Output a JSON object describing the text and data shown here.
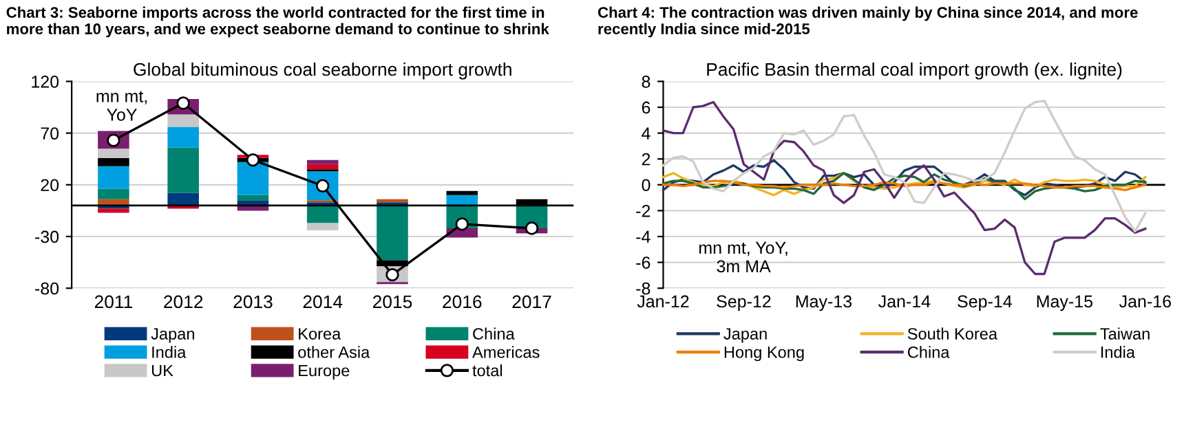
{
  "chart_data": [
    {
      "type": "bar",
      "title": "Chart 3: Seaborne imports across the world contracted for the first time in more than 10 years, and we expect seaborne demand to continue to shrink",
      "subtitle": "Global bituminous coal seaborne import growth",
      "stacked": true,
      "categories": [
        "2011",
        "2012",
        "2013",
        "2014",
        "2015",
        "2016",
        "2017"
      ],
      "series": [
        {
          "name": "Japan",
          "color": "#003a7d",
          "values": [
            -3,
            12,
            5,
            3,
            3,
            0,
            0
          ]
        },
        {
          "name": "Korea",
          "color": "#c0511a",
          "values": [
            6,
            0,
            0,
            2,
            3,
            0,
            0
          ]
        },
        {
          "name": "China",
          "color": "#00836e",
          "values": [
            10,
            44,
            5,
            -17,
            -53,
            -22,
            -22
          ]
        },
        {
          "name": "India",
          "color": "#00a0e0",
          "values": [
            22,
            20,
            32,
            28,
            0,
            10,
            0
          ]
        },
        {
          "name": "other Asia",
          "color": "#000000",
          "values": [
            8,
            0,
            4,
            2,
            -6,
            4,
            6
          ]
        },
        {
          "name": "Americas",
          "color": "#d7001f",
          "values": [
            -4,
            -3,
            3,
            5,
            0,
            null,
            null
          ]
        },
        {
          "name": "UK",
          "color": "#c8c8c8",
          "values": [
            9,
            12,
            null,
            -7,
            -15,
            0,
            0
          ]
        },
        {
          "name": "Europe",
          "color": "#7a1f6e",
          "values": [
            17,
            15,
            -5,
            4,
            -2,
            -9,
            -5
          ]
        },
        {
          "name": "total",
          "type": "line",
          "color": "#000000",
          "marker": "circle",
          "values": [
            63,
            99,
            44,
            19,
            -67,
            -18,
            -22
          ]
        }
      ],
      "ylim": [
        -80,
        120
      ],
      "yticks": [
        -80,
        -30,
        20,
        70,
        120
      ],
      "grid": "y",
      "legend": "bottom",
      "annotations": [
        "mn mt,\nYoY"
      ]
    },
    {
      "type": "line",
      "title": "Chart 4: The contraction was driven mainly by China since 2014, and more recently India since mid-2015",
      "subtitle": "Pacific Basin thermal coal import growth (ex. lignite)",
      "x": [
        "2012-01",
        "2012-02",
        "2012-03",
        "2012-04",
        "2012-05",
        "2012-06",
        "2012-07",
        "2012-08",
        "2012-09",
        "2012-10",
        "2012-11",
        "2012-12",
        "2013-01",
        "2013-02",
        "2013-03",
        "2013-04",
        "2013-05",
        "2013-06",
        "2013-07",
        "2013-08",
        "2013-09",
        "2013-10",
        "2013-11",
        "2013-12",
        "2014-01",
        "2014-02",
        "2014-03",
        "2014-04",
        "2014-05",
        "2014-06",
        "2014-07",
        "2014-08",
        "2014-09",
        "2014-10",
        "2014-11",
        "2014-12",
        "2015-01",
        "2015-02",
        "2015-03",
        "2015-04",
        "2015-05",
        "2015-06",
        "2015-07",
        "2015-08",
        "2015-09",
        "2015-10",
        "2015-11",
        "2015-12",
        "2016-01"
      ],
      "series": [
        {
          "name": "Japan",
          "color": "#1f3864",
          "values": [
            -0.4,
            0.2,
            0.4,
            0.3,
            0.2,
            0.8,
            1.1,
            1.5,
            1.0,
            1.5,
            1.4,
            1.9,
            1.2,
            0.2,
            -0.2,
            -0.3,
            0.7,
            0.7,
            0.9,
            0.6,
            0.8,
            0,
            -0.3,
            0.2,
            1.1,
            1.4,
            1.4,
            1.4,
            0.8,
            0.1,
            0,
            0.3,
            0.8,
            0.3,
            0.3,
            -0.4,
            -0.8,
            -0.2,
            0.1,
            0,
            -0.2,
            -0.2,
            -0.1,
            0.1,
            0.6,
            0.3,
            1.0,
            0.8,
            0.2
          ]
        },
        {
          "name": "South Korea",
          "color": "#f0b323",
          "values": [
            0.6,
            0.9,
            0.5,
            0.2,
            0,
            -0.1,
            0.2,
            0.3,
            0.1,
            -0.2,
            -0.5,
            -0.8,
            -0.4,
            -0.7,
            -0.4,
            -0.2,
            0.4,
            0.5,
            0.9,
            0.3,
            -0.1,
            -0.2,
            -0.3,
            -0.2,
            0,
            0.1,
            0.2,
            0.3,
            0.1,
            -0.1,
            -0.2,
            0,
            0.3,
            0.2,
            0,
            0.4,
            0,
            -0.1,
            0.2,
            0.4,
            0.3,
            0.3,
            0.4,
            0.3,
            0,
            -0.2,
            -0.1,
            -0.1,
            0.6
          ]
        },
        {
          "name": "Taiwan",
          "color": "#1e6b3a",
          "values": [
            0.1,
            0.3,
            0.3,
            0.1,
            -0.2,
            -0.2,
            -0.1,
            0.1,
            0.1,
            -0.1,
            -0.2,
            -0.2,
            -0.3,
            -0.3,
            -0.4,
            -0.7,
            0.1,
            0.3,
            0.9,
            0.4,
            -0.2,
            -0.4,
            0,
            0.5,
            0.7,
            0.6,
            0.2,
            0.8,
            0.4,
            0.2,
            -0.1,
            0.1,
            0.5,
            0.2,
            0.2,
            -0.3,
            -1.1,
            -0.5,
            -0.3,
            -0.2,
            -0.2,
            -0.3,
            -0.5,
            -0.4,
            -0.1,
            0,
            0,
            0.3,
            0.2
          ]
        },
        {
          "name": "Hong Kong",
          "color": "#f07d00",
          "values": [
            0,
            0,
            -0.1,
            0,
            0.2,
            0.3,
            0.3,
            0.2,
            0,
            0,
            -0.1,
            -0.1,
            -0.2,
            -0.1,
            0,
            0,
            0,
            0.1,
            0,
            -0.1,
            -0.1,
            0,
            0.2,
            0.1,
            -0.1,
            0,
            0,
            0.2,
            0.1,
            0,
            0,
            0.1,
            0,
            0.1,
            0.1,
            0.1,
            0.1,
            0,
            -0.1,
            -0.2,
            -0.2,
            -0.1,
            -0.1,
            -0.1,
            -0.2,
            -0.3,
            -0.4,
            -0.2,
            0
          ]
        },
        {
          "name": "China",
          "color": "#5b2c6f",
          "values": [
            4.2,
            4.0,
            4.0,
            6.0,
            6.1,
            6.4,
            5.3,
            4.3,
            1.6,
            1.0,
            0.4,
            2.6,
            3.4,
            3.3,
            2.6,
            1.5,
            1.1,
            -0.8,
            -1.4,
            -0.8,
            1.0,
            1.2,
            0.2,
            -1.0,
            0.2,
            1.0,
            1.5,
            0.4,
            -0.9,
            -0.6,
            -1.4,
            -2.2,
            -3.5,
            -3.4,
            -2.7,
            -3.3,
            -6.0,
            -6.9,
            -6.9,
            -4.4,
            -4.1,
            -4.1,
            -4.1,
            -3.5,
            -2.6,
            -2.6,
            -3.1,
            -3.7,
            -3.4
          ]
        },
        {
          "name": "India",
          "color": "#d0cdc8",
          "values": [
            1.5,
            2.1,
            2.2,
            1.8,
            0.2,
            -0.3,
            -0.5,
            0.3,
            0.9,
            1.3,
            2.2,
            2.6,
            4.0,
            3.9,
            4.2,
            3.1,
            3.4,
            3.9,
            5.3,
            5.4,
            3.8,
            2.5,
            0.8,
            0.6,
            0.2,
            -1.3,
            -1.4,
            -0.2,
            0.9,
            0.8,
            0.6,
            0.3,
            0.4,
            0.9,
            2.5,
            4.2,
            5.9,
            6.4,
            6.5,
            5.0,
            3.6,
            2.2,
            1.9,
            1.2,
            0.8,
            -0.8,
            -2.5,
            -3.6,
            -2.2
          ]
        }
      ],
      "xlim": [
        "2012-01",
        "2016-03"
      ],
      "xticks": [
        {
          "value": "2012-01",
          "label": "Jan-12"
        },
        {
          "value": "2012-09",
          "label": "Sep-12"
        },
        {
          "value": "2013-05",
          "label": "May-13"
        },
        {
          "value": "2014-01",
          "label": "Jan-14"
        },
        {
          "value": "2014-09",
          "label": "Sep-14"
        },
        {
          "value": "2015-05",
          "label": "May-15"
        },
        {
          "value": "2016-01",
          "label": "Jan-16"
        }
      ],
      "ylim": [
        -8,
        8
      ],
      "yticks": [
        -8,
        -6,
        -4,
        -2,
        0,
        2,
        4,
        6,
        8
      ],
      "grid": "y",
      "legend": "bottom",
      "marker": "none",
      "line_style": "solid",
      "annotations": [
        "mn mt, YoY,\n3m MA"
      ]
    }
  ]
}
